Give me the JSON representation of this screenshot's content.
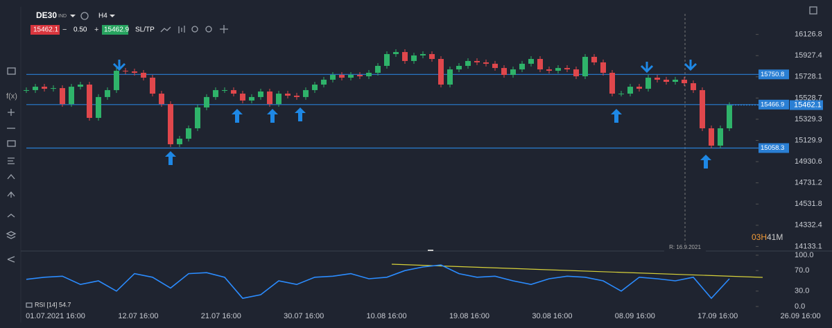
{
  "header": {
    "symbol": "DE30",
    "badge": "IND",
    "timeframe": "H4",
    "sell_price": "15462.1",
    "minus": "−",
    "volume": "0.50",
    "plus": "+",
    "buy_price": "15462.9",
    "sltp": "SL/TP"
  },
  "toolbar": {
    "fx": "f(x)"
  },
  "countdown": {
    "hours": "03H",
    "minutes": "41M"
  },
  "range_label": "R: 16.9.2021",
  "time_axis": [
    "01.07.2021 16:00",
    "12.07 16:00",
    "21.07 16:00",
    "30.07 16:00",
    "10.08 16:00",
    "19.08 16:00",
    "30.08 16:00",
    "08.09 16:00",
    "17.09 16:00",
    "26.09 16:00"
  ],
  "chart_data": [
    {
      "type": "candlestick",
      "up_color": "#2fb36a",
      "down_color": "#e0474c",
      "values": [
        15603,
        15635,
        15616,
        15622,
        15472,
        15635,
        15655,
        15342,
        15538,
        15603,
        15785,
        15779,
        15766,
        15720,
        15570,
        15472,
        15094,
        15146,
        15244,
        15440,
        15538,
        15603,
        15603,
        15570,
        15505,
        15538,
        15590,
        15472,
        15570,
        15551,
        15538,
        15603,
        15655,
        15701,
        15746,
        15720,
        15746,
        15733,
        15766,
        15831,
        15942,
        15961,
        15877,
        15929,
        15942,
        15896,
        15655,
        15798,
        15831,
        15877,
        15864,
        15851,
        15811,
        15746,
        15798,
        15851,
        15896,
        15798,
        15785,
        15811,
        15798,
        15733,
        15916,
        15864,
        15766,
        15570,
        15570,
        15635,
        15616,
        15720,
        15701,
        15681,
        15701,
        15668,
        15603,
        15244,
        15081,
        15244,
        15462
      ],
      "ylim": [
        14090,
        16320
      ],
      "yticks": [
        16126.8,
        15927.4,
        15728.1,
        15528.7,
        15329.3,
        15129.9,
        14930.6,
        14731.2,
        14531.8,
        14332.4,
        14133.1
      ],
      "levels": [
        15750.8,
        15466.9,
        15058.3
      ],
      "level_color": "#2a7fd4",
      "last_price": 15462.1
    },
    {
      "type": "line",
      "title": "RSI [14] 54.7",
      "color": "#2b8cff",
      "values": [
        53,
        57,
        59,
        43,
        50,
        30,
        64,
        57,
        36,
        64,
        66,
        57,
        16,
        23,
        50,
        43,
        57,
        59,
        64,
        54,
        57,
        70,
        77,
        81,
        64,
        57,
        59,
        50,
        43,
        54,
        59,
        57,
        50,
        30,
        57,
        54,
        50,
        57,
        16,
        54
      ],
      "ylim": [
        0,
        100
      ],
      "yticks": [
        {
          "value": 100,
          "label": "100.0"
        },
        {
          "value": 70,
          "label": "70.0"
        },
        {
          "value": 30,
          "label": "30.0"
        },
        {
          "value": 0,
          "label": "0.0"
        }
      ]
    }
  ]
}
